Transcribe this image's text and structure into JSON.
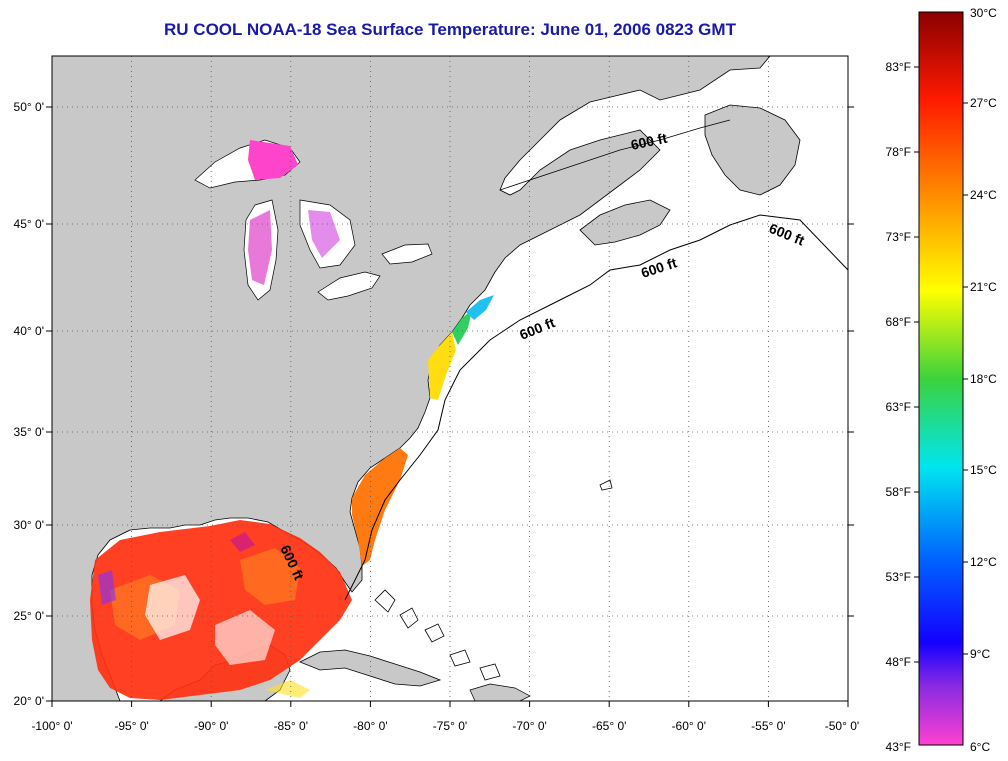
{
  "title": "RU COOL  NOAA-18  Sea Surface Temperature:  June 01, 2006 0823 GMT",
  "map": {
    "longitude_labels": [
      "-100° 0'",
      "-95° 0'",
      "-90° 0'",
      "-85° 0'",
      "-80° 0'",
      "-75° 0'",
      "-70° 0'",
      "-65° 0'",
      "-60° 0'",
      "-55° 0'",
      "-50° 0'"
    ],
    "latitude_labels": [
      "50° 0'",
      "45° 0'",
      "40° 0'",
      "35° 0'",
      "30° 0'",
      "25° 0'",
      "20° 0'"
    ],
    "contour_labels": [
      "600 ft",
      "600 ft",
      "600 ft",
      "600 ft",
      "600 ft"
    ],
    "colors": {
      "land": "#c8c8c8",
      "ocean_no_data": "#ffffff",
      "gridline": "#555555"
    }
  },
  "colorbar": {
    "celsius_labels": [
      "30°C",
      "27°C",
      "24°C",
      "21°C",
      "18°C",
      "15°C",
      "12°C",
      "9°C",
      "6°C"
    ],
    "fahrenheit_labels": [
      "83°F",
      "78°F",
      "73°F",
      "68°F",
      "63°F",
      "58°F",
      "53°F",
      "48°F",
      "43°F"
    ],
    "gradient_colors": [
      "#8b0000",
      "#ff2000",
      "#ff8c00",
      "#ffff00",
      "#32cd32",
      "#00e5ee",
      "#0050ff",
      "#1a00ff",
      "#8a2be2",
      "#ff00ff",
      "#ff66cc"
    ]
  }
}
